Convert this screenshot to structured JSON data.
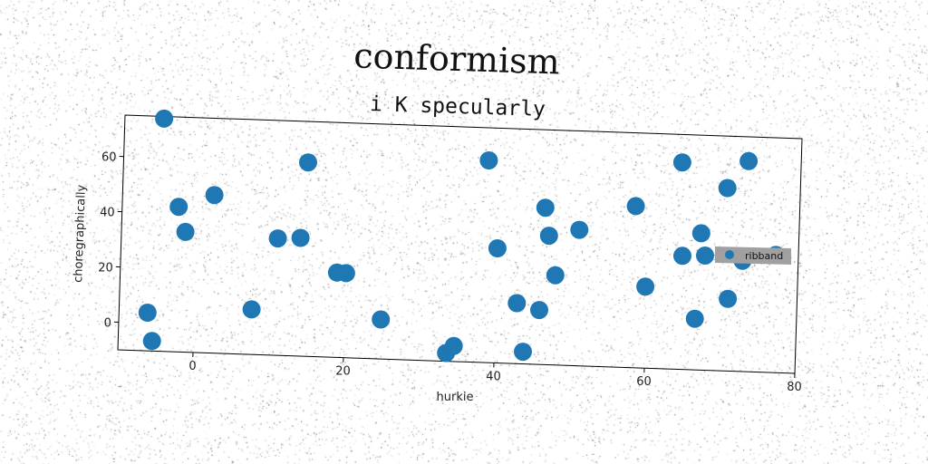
{
  "chart_data": {
    "type": "scatter",
    "title": "conformism",
    "subtitle": "i K specularly",
    "xlabel": "hurkie",
    "ylabel": "choregraphically",
    "xlim": [
      -10,
      80
    ],
    "ylim": [
      -10,
      75
    ],
    "xticks": [
      0,
      20,
      40,
      60,
      80
    ],
    "yticks": [
      0,
      20,
      40,
      60
    ],
    "grid": false,
    "legend": {
      "entries": [
        "ribband"
      ],
      "placement": "right"
    },
    "colors": {
      "points": "#1f77b4",
      "legend_bg": "#a0a0a0"
    },
    "series": [
      {
        "name": "ribband",
        "points": [
          [
            -4.8,
            74.2
          ],
          [
            -6.2,
            3.8
          ],
          [
            -5.5,
            -6.4
          ],
          [
            -2.5,
            42.5
          ],
          [
            -1.5,
            33.5
          ],
          [
            2.2,
            47.2
          ],
          [
            7.6,
            6.3
          ],
          [
            10.8,
            32.3
          ],
          [
            13.8,
            32.8
          ],
          [
            14.5,
            60.2
          ],
          [
            18.8,
            20.7
          ],
          [
            20.0,
            20.6
          ],
          [
            24.8,
            4.3
          ],
          [
            33.6,
            -7.0
          ],
          [
            34.6,
            -4.4
          ],
          [
            38.5,
            63.2
          ],
          [
            40.0,
            31.5
          ],
          [
            42.8,
            11.9
          ],
          [
            43.8,
            -5.6
          ],
          [
            45.8,
            9.7
          ],
          [
            46.2,
            46.8
          ],
          [
            46.8,
            36.7
          ],
          [
            47.8,
            22.5
          ],
          [
            50.8,
            39.2
          ],
          [
            58.2,
            48.5
          ],
          [
            59.8,
            19.5
          ],
          [
            64.2,
            64.9
          ],
          [
            64.6,
            31.1
          ],
          [
            66.5,
            8.5
          ],
          [
            67.0,
            39.5
          ],
          [
            67.6,
            31.5
          ],
          [
            70.3,
            56.2
          ],
          [
            70.8,
            16.1
          ],
          [
            72.6,
            30.1
          ],
          [
            73.0,
            66.2
          ],
          [
            77.0,
            32.6
          ]
        ]
      }
    ]
  }
}
